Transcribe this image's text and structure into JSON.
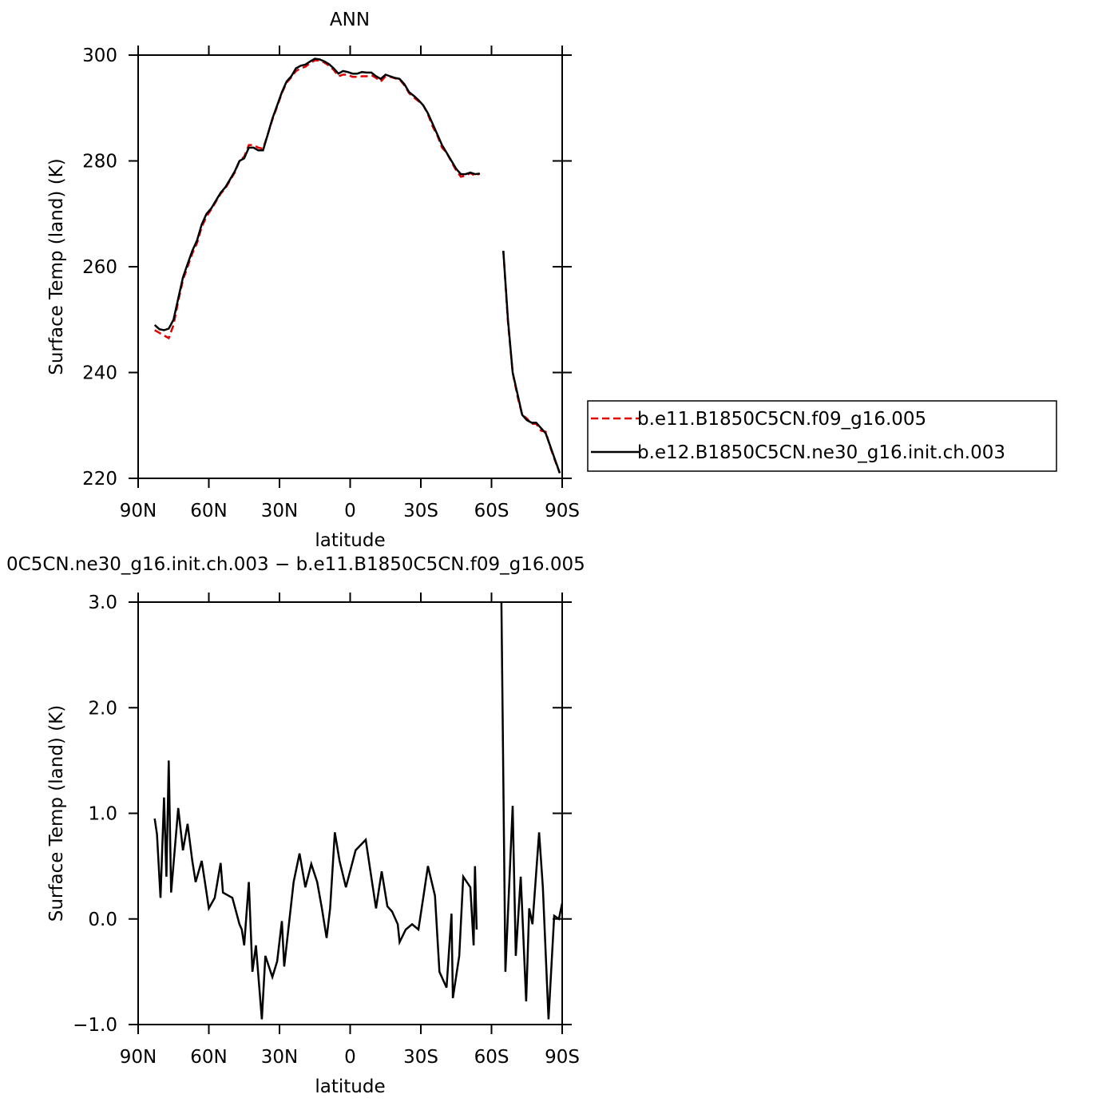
{
  "chart_data": [
    {
      "type": "line",
      "title": "ANN",
      "x_label": "latitude",
      "y_label": "Surface Temp (land) (K)",
      "x": [
        83,
        81,
        79,
        77,
        75,
        73,
        71,
        69,
        67,
        65,
        63,
        61,
        59,
        57,
        55,
        53,
        51,
        49,
        47,
        45,
        43,
        41,
        39,
        37,
        35,
        33,
        31,
        29,
        27,
        25,
        23,
        21,
        19,
        17,
        15,
        13,
        11,
        9,
        7,
        5,
        3,
        1,
        -1,
        -3,
        -5,
        -7,
        -9,
        -11,
        -13,
        -15,
        -17,
        -19,
        -21,
        -23,
        -25,
        -27,
        -29,
        -31,
        -33,
        -35,
        -37,
        -39,
        -41,
        -43,
        -45,
        -47,
        -49,
        -51,
        -53,
        -55,
        -57,
        -59,
        -61,
        -63,
        -65,
        -67,
        -69,
        -71,
        -73,
        -75,
        -77,
        -79,
        -81,
        -83,
        -85,
        -87,
        -89
      ],
      "series": [
        {
          "name": "b.e11.B1850C5CN.f09_g16.005",
          "color": "#e00000",
          "linestyle": "dashed",
          "values": [
            248,
            247.5,
            247,
            246.5,
            249,
            253.5,
            257.5,
            260,
            262.5,
            264.5,
            267.5,
            269.5,
            270.8,
            272.3,
            273.8,
            274.8,
            276.3,
            277.8,
            280,
            280.8,
            283,
            283,
            282.5,
            282.3,
            285,
            287.8,
            290.3,
            292.8,
            294.8,
            295.8,
            297,
            297.5,
            297.8,
            298.5,
            299,
            299,
            298.6,
            298,
            297.2,
            296,
            296.3,
            296.3,
            295.9,
            295.9,
            296,
            296,
            296.2,
            295.7,
            295,
            296,
            295.9,
            295.6,
            295.4,
            294.3,
            292.8,
            292,
            291.3,
            290.5,
            288.8,
            286.5,
            284.8,
            282.5,
            281.5,
            279.8,
            278.2,
            277,
            277.2,
            277.7,
            277.2,
            277.6,
            null,
            null,
            null,
            null,
            263,
            249.5,
            240,
            235.5,
            232,
            231.3,
            230.3,
            230.3,
            229,
            228.8,
            225.8,
            223.3,
            221
          ]
        },
        {
          "name": "b.e12.B1850C5CN.ne30_g16.init.ch.003",
          "color": "#000000",
          "linestyle": "solid",
          "values": [
            249,
            248.2,
            248,
            248.3,
            250,
            254,
            258,
            260.5,
            263,
            265,
            268,
            270,
            271,
            272.5,
            274,
            275,
            276.5,
            278,
            280,
            280.5,
            282.5,
            282.5,
            282,
            282,
            285,
            288,
            290.5,
            293,
            295,
            296,
            297.5,
            298,
            298.2,
            298.8,
            299.3,
            299.2,
            298.8,
            298.3,
            297.5,
            296.5,
            297,
            296.8,
            296.5,
            296.5,
            296.8,
            296.7,
            296.7,
            296,
            295.5,
            296.3,
            296,
            295.7,
            295.5,
            294.5,
            293,
            292.3,
            291.5,
            290.5,
            289,
            287,
            285,
            283,
            281.5,
            280,
            278.5,
            277.5,
            277.5,
            277.8,
            277.5,
            277.6,
            null,
            null,
            null,
            null,
            263,
            250,
            240,
            236,
            232,
            231,
            230.5,
            230.5,
            229.5,
            228.5,
            226,
            223.5,
            221
          ]
        }
      ],
      "xlim": [
        90,
        -90
      ],
      "xticks": [
        {
          "value": 90,
          "label": "90N"
        },
        {
          "value": 60,
          "label": "60N"
        },
        {
          "value": 30,
          "label": "30N"
        },
        0,
        {
          "value": -30,
          "label": "30S"
        },
        {
          "value": -60,
          "label": "60S"
        },
        {
          "value": -90,
          "label": "90S"
        }
      ],
      "ylim": [
        220,
        300
      ],
      "yticks": [
        220,
        240,
        260,
        280,
        300
      ],
      "legend": "right"
    },
    {
      "type": "line",
      "title": "0C5CN.ne30_g16.init.ch.003 − b.e11.B1850C5CN.f09_g16.005",
      "x_label": "latitude",
      "y_label": "Surface Temp (land) (K)",
      "x": [
        83,
        82,
        80.5,
        79,
        78,
        77,
        76,
        73,
        71,
        69,
        67,
        65.6,
        63,
        61,
        60,
        57.5,
        55,
        54,
        50,
        47,
        46,
        45,
        43,
        41.5,
        40,
        37.5,
        36,
        33,
        31,
        29,
        28,
        24,
        21.5,
        19,
        16.5,
        14,
        12,
        10,
        8.5,
        6.5,
        4.5,
        1.8,
        -2.3,
        -6.6,
        -9.3,
        -11,
        -13.4,
        -15.8,
        -17.8,
        -20.2,
        -21,
        -23.6,
        -26.3,
        -29,
        -31,
        -33,
        -36,
        -37.9,
        -40.9,
        -43,
        -43.6,
        -46.3,
        -48,
        -51,
        -52.4,
        -53,
        -53.7,
        -58,
        -64.2,
        -65.9,
        -69,
        -70.3,
        -72.4,
        -74.7,
        -76,
        -77.4,
        -80.2,
        -81.8,
        -84.2,
        -86.6,
        -88.6,
        -90
      ],
      "values": [
        0.95,
        0.8,
        0.2,
        1.15,
        0.4,
        1.5,
        0.25,
        1.05,
        0.65,
        0.9,
        0.55,
        0.35,
        0.55,
        0.25,
        0.1,
        0.2,
        0.53,
        0.25,
        0.2,
        -0.05,
        -0.1,
        -0.25,
        0.35,
        -0.5,
        -0.25,
        -0.95,
        -0.35,
        -0.55,
        -0.4,
        -0.02,
        -0.45,
        0.35,
        0.62,
        0.3,
        0.52,
        0.35,
        0.1,
        -0.18,
        0.1,
        0.82,
        0.55,
        0.3,
        0.65,
        0.75,
        0.35,
        0.1,
        0.45,
        0.12,
        0.07,
        -0.05,
        -0.22,
        -0.1,
        -0.05,
        -0.1,
        0.2,
        0.5,
        0.22,
        -0.5,
        -0.65,
        0.05,
        -0.75,
        -0.35,
        0.4,
        0.3,
        -0.25,
        0.5,
        -0.1,
        null,
        3.0,
        -0.5,
        1.07,
        -0.35,
        0.4,
        -0.78,
        0.1,
        -0.05,
        0.82,
        0.3,
        -0.95,
        0.03,
        0.0,
        0.15
      ],
      "color": "#000000",
      "xlim": [
        90,
        -90
      ],
      "xticks": [
        {
          "value": 90,
          "label": "90N"
        },
        {
          "value": 60,
          "label": "60N"
        },
        {
          "value": 30,
          "label": "30N"
        },
        0,
        {
          "value": -30,
          "label": "30S"
        },
        {
          "value": -60,
          "label": "60S"
        },
        {
          "value": -90,
          "label": "90S"
        }
      ],
      "ylim": [
        -1,
        3
      ],
      "yticks": [
        {
          "value": -1,
          "label": "−1.0"
        },
        {
          "value": 0,
          "label": "0.0"
        },
        {
          "value": 1,
          "label": "1.0"
        },
        {
          "value": 2,
          "label": "2.0"
        },
        {
          "value": 3,
          "label": "3.0"
        }
      ]
    }
  ]
}
